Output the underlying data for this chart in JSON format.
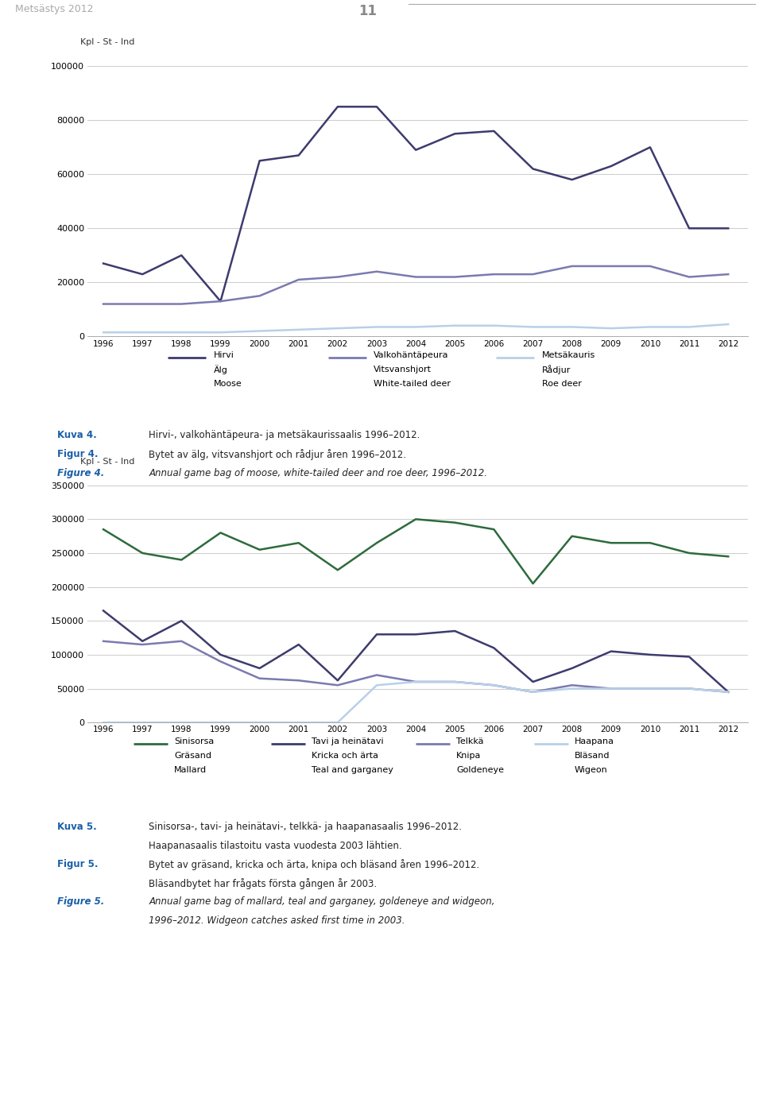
{
  "years": [
    1996,
    1997,
    1998,
    1999,
    2000,
    2001,
    2002,
    2003,
    2004,
    2005,
    2006,
    2007,
    2008,
    2009,
    2010,
    2011,
    2012
  ],
  "chart1": {
    "ylabel": "Kpl - St - Ind",
    "ylim": [
      0,
      100000
    ],
    "yticks": [
      0,
      20000,
      40000,
      60000,
      80000,
      100000
    ],
    "ytick_labels": [
      "0",
      "20000",
      "40000",
      "60000",
      "80000",
      "100000"
    ],
    "hirvi": [
      27000,
      23000,
      30000,
      13000,
      65000,
      67000,
      85000,
      85000,
      69000,
      75000,
      76000,
      62000,
      58000,
      63000,
      70000,
      40000,
      40000
    ],
    "valkohantapeura": [
      12000,
      12000,
      12000,
      13000,
      15000,
      21000,
      22000,
      24000,
      22000,
      22000,
      23000,
      23000,
      26000,
      26000,
      26000,
      22000,
      23000
    ],
    "metsakauris": [
      1500,
      1500,
      1500,
      1500,
      2000,
      2500,
      3000,
      3500,
      3500,
      4000,
      4000,
      3500,
      3500,
      3000,
      3500,
      3500,
      4500
    ],
    "hirvi_color": "#3d3b6e",
    "valkohantapeura_color": "#7b7ab0",
    "metsakauris_color": "#b8d0e8",
    "legend_labels_fi": [
      "Hirvi",
      "Valkohäntäpeura",
      "Metsäkauris"
    ],
    "legend_labels_sv": [
      "Älg",
      "Vitsvanshjort",
      "Rådjur"
    ],
    "legend_labels_en": [
      "Moose",
      "White-tailed deer",
      "Roe deer"
    ]
  },
  "chart2": {
    "ylabel": "Kpl - St - Ind",
    "ylim": [
      0,
      350000
    ],
    "yticks": [
      0,
      50000,
      100000,
      150000,
      200000,
      250000,
      300000,
      350000
    ],
    "ytick_labels": [
      "0",
      "50000",
      "100000",
      "150000",
      "200000",
      "250000",
      "300000",
      "350000"
    ],
    "sinisorsa": [
      285000,
      250000,
      240000,
      280000,
      255000,
      265000,
      225000,
      265000,
      300000,
      295000,
      285000,
      205000,
      275000,
      265000,
      265000,
      250000,
      245000
    ],
    "tavi": [
      165000,
      120000,
      150000,
      100000,
      80000,
      115000,
      62000,
      130000,
      130000,
      135000,
      110000,
      60000,
      80000,
      105000,
      100000,
      97000,
      45000
    ],
    "telkka": [
      120000,
      115000,
      120000,
      90000,
      65000,
      62000,
      55000,
      70000,
      60000,
      60000,
      55000,
      45000,
      55000,
      50000,
      50000,
      50000,
      45000
    ],
    "haapana": [
      0,
      0,
      0,
      0,
      0,
      0,
      0,
      55000,
      60000,
      60000,
      55000,
      45000,
      50000,
      50000,
      50000,
      50000,
      45000
    ],
    "sinisorsa_color": "#2d6b3c",
    "tavi_color": "#3d3b6e",
    "telkka_color": "#7b7ab0",
    "haapana_color": "#b8d0e8",
    "legend_labels_fi": [
      "Sinisorsa",
      "Tavi ja heinätavi",
      "Telkkä",
      "Haapana"
    ],
    "legend_labels_sv": [
      "Gräsand",
      "Kricka och ärta",
      "Knipa",
      "Bläsand"
    ],
    "legend_labels_en": [
      "Mallard",
      "Teal and garganey",
      "Goldeneye",
      "Wigeon"
    ]
  },
  "header_text": "Metsästys 2012",
  "page_number": "11",
  "caption1_kuva": "Kuva 4.",
  "caption1_kuva_text": "Hirvi-, valkohäntäpeura- ja metsäkaurissaalis 1996–2012.",
  "caption1_figur": "Figur 4.",
  "caption1_figur_text": "Bytet av älg, vitsvanshjort och rådjur åren 1996–2012.",
  "caption1_figure": "Figure 4.",
  "caption1_figure_text": "Annual game bag of moose, white-tailed deer and roe deer, 1996–2012.",
  "caption2_kuva": "Kuva 5.",
  "caption2_kuva_text": "Sinisorsa-, tavi- ja heinätavi-, telkkä- ja haapanasaalis 1996–2012.",
  "caption2_kuva_text2": "Haapanasaalis tilastoitu vasta vuodesta 2003 lähtien.",
  "caption2_figur": "Figur 5.",
  "caption2_figur_text": "Bytet av gräsand, kricka och ärta, knipa och bläsand åren 1996–2012.",
  "caption2_figur_text2": "Bläsandbytet har frågats första gången år 2003.",
  "caption2_figure": "Figure 5.",
  "caption2_figure_text": "Annual game bag of mallard, teal and garganey, goldeneye and widgeon,",
  "caption2_figure_text2": "1996–2012. Widgeon catches asked first time in 2003."
}
